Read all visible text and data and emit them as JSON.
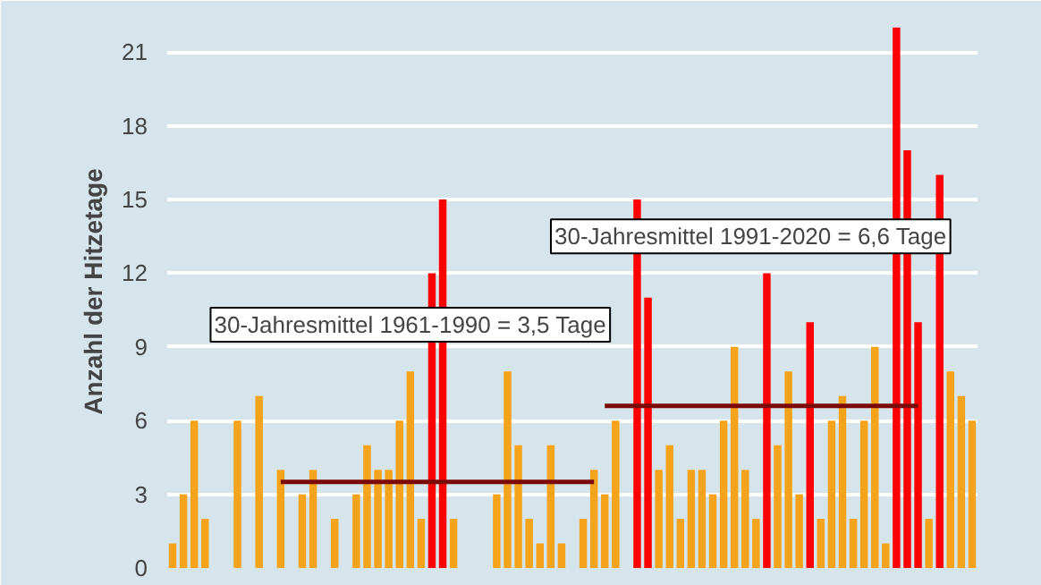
{
  "chart_data": {
    "type": "bar",
    "ylabel": "Anzahl der Hitzetage",
    "categories": [
      null,
      null,
      null,
      null,
      null,
      null,
      null,
      null,
      null,
      null,
      null,
      null,
      null,
      null,
      null,
      null,
      null,
      null,
      null,
      null,
      null,
      null,
      null,
      null,
      null,
      null,
      null,
      null,
      null,
      null,
      null,
      null,
      null,
      null,
      null,
      null,
      null,
      null,
      null,
      null,
      null,
      null,
      null,
      null,
      null,
      null,
      null,
      null,
      null,
      null,
      null,
      null,
      null,
      null,
      null,
      null,
      null,
      null,
      null,
      null,
      null,
      null,
      null,
      null,
      null,
      null,
      null,
      null,
      null,
      null,
      null,
      null,
      null,
      null,
      null
    ],
    "series": [
      {
        "values": [
          1,
          3,
          6,
          2,
          0,
          0,
          6,
          0,
          7,
          0,
          4,
          0,
          3,
          4,
          0,
          2,
          0,
          3,
          5,
          4,
          4,
          6,
          8,
          2,
          12,
          15,
          2,
          0,
          0,
          0,
          3,
          8,
          5,
          2,
          1,
          5,
          1,
          0,
          2,
          4,
          3,
          6,
          0,
          15,
          11,
          4,
          5,
          2,
          4,
          4,
          3,
          6,
          9,
          4,
          2,
          12,
          5,
          8,
          3,
          10,
          2,
          6,
          7,
          2,
          6,
          9,
          1,
          22,
          17,
          10,
          2,
          16,
          8,
          7,
          6
        ],
        "colors": [
          "#f5a31a",
          "#f5a31a",
          "#f5a31a",
          "#f5a31a",
          "#f5a31a",
          "#f5a31a",
          "#f5a31a",
          "#f5a31a",
          "#f5a31a",
          "#f5a31a",
          "#f5a31a",
          "#f5a31a",
          "#f5a31a",
          "#f5a31a",
          "#f5a31a",
          "#f5a31a",
          "#f5a31a",
          "#f5a31a",
          "#f5a31a",
          "#f5a31a",
          "#f5a31a",
          "#f5a31a",
          "#f5a31a",
          "#f5a31a",
          "#ff0000",
          "#ff0000",
          "#f5a31a",
          "#f5a31a",
          "#f5a31a",
          "#f5a31a",
          "#f5a31a",
          "#f5a31a",
          "#f5a31a",
          "#f5a31a",
          "#f5a31a",
          "#f5a31a",
          "#f5a31a",
          "#f5a31a",
          "#f5a31a",
          "#f5a31a",
          "#f5a31a",
          "#f5a31a",
          "#f5a31a",
          "#ff0000",
          "#ff0000",
          "#f5a31a",
          "#f5a31a",
          "#f5a31a",
          "#f5a31a",
          "#f5a31a",
          "#f5a31a",
          "#f5a31a",
          "#f5a31a",
          "#f5a31a",
          "#f5a31a",
          "#ff0000",
          "#f5a31a",
          "#f5a31a",
          "#f5a31a",
          "#ff0000",
          "#f5a31a",
          "#f5a31a",
          "#f5a31a",
          "#f5a31a",
          "#f5a31a",
          "#f5a31a",
          "#f5a31a",
          "#ff0000",
          "#ff0000",
          "#ff0000",
          "#f5a31a",
          "#ff0000",
          "#f5a31a",
          "#f5a31a",
          "#f5a31a"
        ]
      },
      {
        "type": "line",
        "color": "#7b0a0a",
        "values": [
          null,
          null,
          null,
          null,
          null,
          null,
          null,
          null,
          null,
          null,
          3.5,
          3.5,
          3.5,
          3.5,
          3.5,
          3.5,
          3.5,
          3.5,
          3.5,
          3.5,
          3.5,
          3.5,
          3.5,
          3.5,
          3.5,
          3.5,
          3.5,
          3.5,
          3.5,
          3.5,
          3.5,
          3.5,
          3.5,
          3.5,
          3.5,
          3.5,
          3.5,
          3.5,
          3.5,
          3.5,
          null,
          null,
          null,
          null,
          null,
          null,
          null,
          null,
          null,
          null,
          null,
          null,
          null,
          null,
          null,
          null,
          null,
          null,
          null,
          null,
          null,
          null,
          null,
          null,
          null,
          null,
          null,
          null,
          null,
          null,
          null,
          null,
          null,
          null,
          null
        ]
      },
      {
        "type": "line",
        "color": "#7b0a0a",
        "values": [
          null,
          null,
          null,
          null,
          null,
          null,
          null,
          null,
          null,
          null,
          null,
          null,
          null,
          null,
          null,
          null,
          null,
          null,
          null,
          null,
          null,
          null,
          null,
          null,
          null,
          null,
          null,
          null,
          null,
          null,
          null,
          null,
          null,
          null,
          null,
          null,
          null,
          null,
          null,
          null,
          6.6,
          6.6,
          6.6,
          6.6,
          6.6,
          6.6,
          6.6,
          6.6,
          6.6,
          6.6,
          6.6,
          6.6,
          6.6,
          6.6,
          6.6,
          6.6,
          6.6,
          6.6,
          6.6,
          6.6,
          6.6,
          6.6,
          6.6,
          6.6,
          6.6,
          6.6,
          6.6,
          6.6,
          6.6,
          6.6,
          null,
          null,
          null,
          null,
          null
        ]
      }
    ],
    "ylim": [
      0,
      22.5
    ],
    "yticks": [
      0,
      3,
      6,
      9,
      12,
      15,
      18,
      21
    ],
    "grid": "y",
    "tick_labels": "y",
    "annotations": [
      "30-Jahresmittel 1961-1990 = 3,5 Tage",
      "30-Jahresmittel 1991-2020 = 6,6 Tage"
    ]
  }
}
